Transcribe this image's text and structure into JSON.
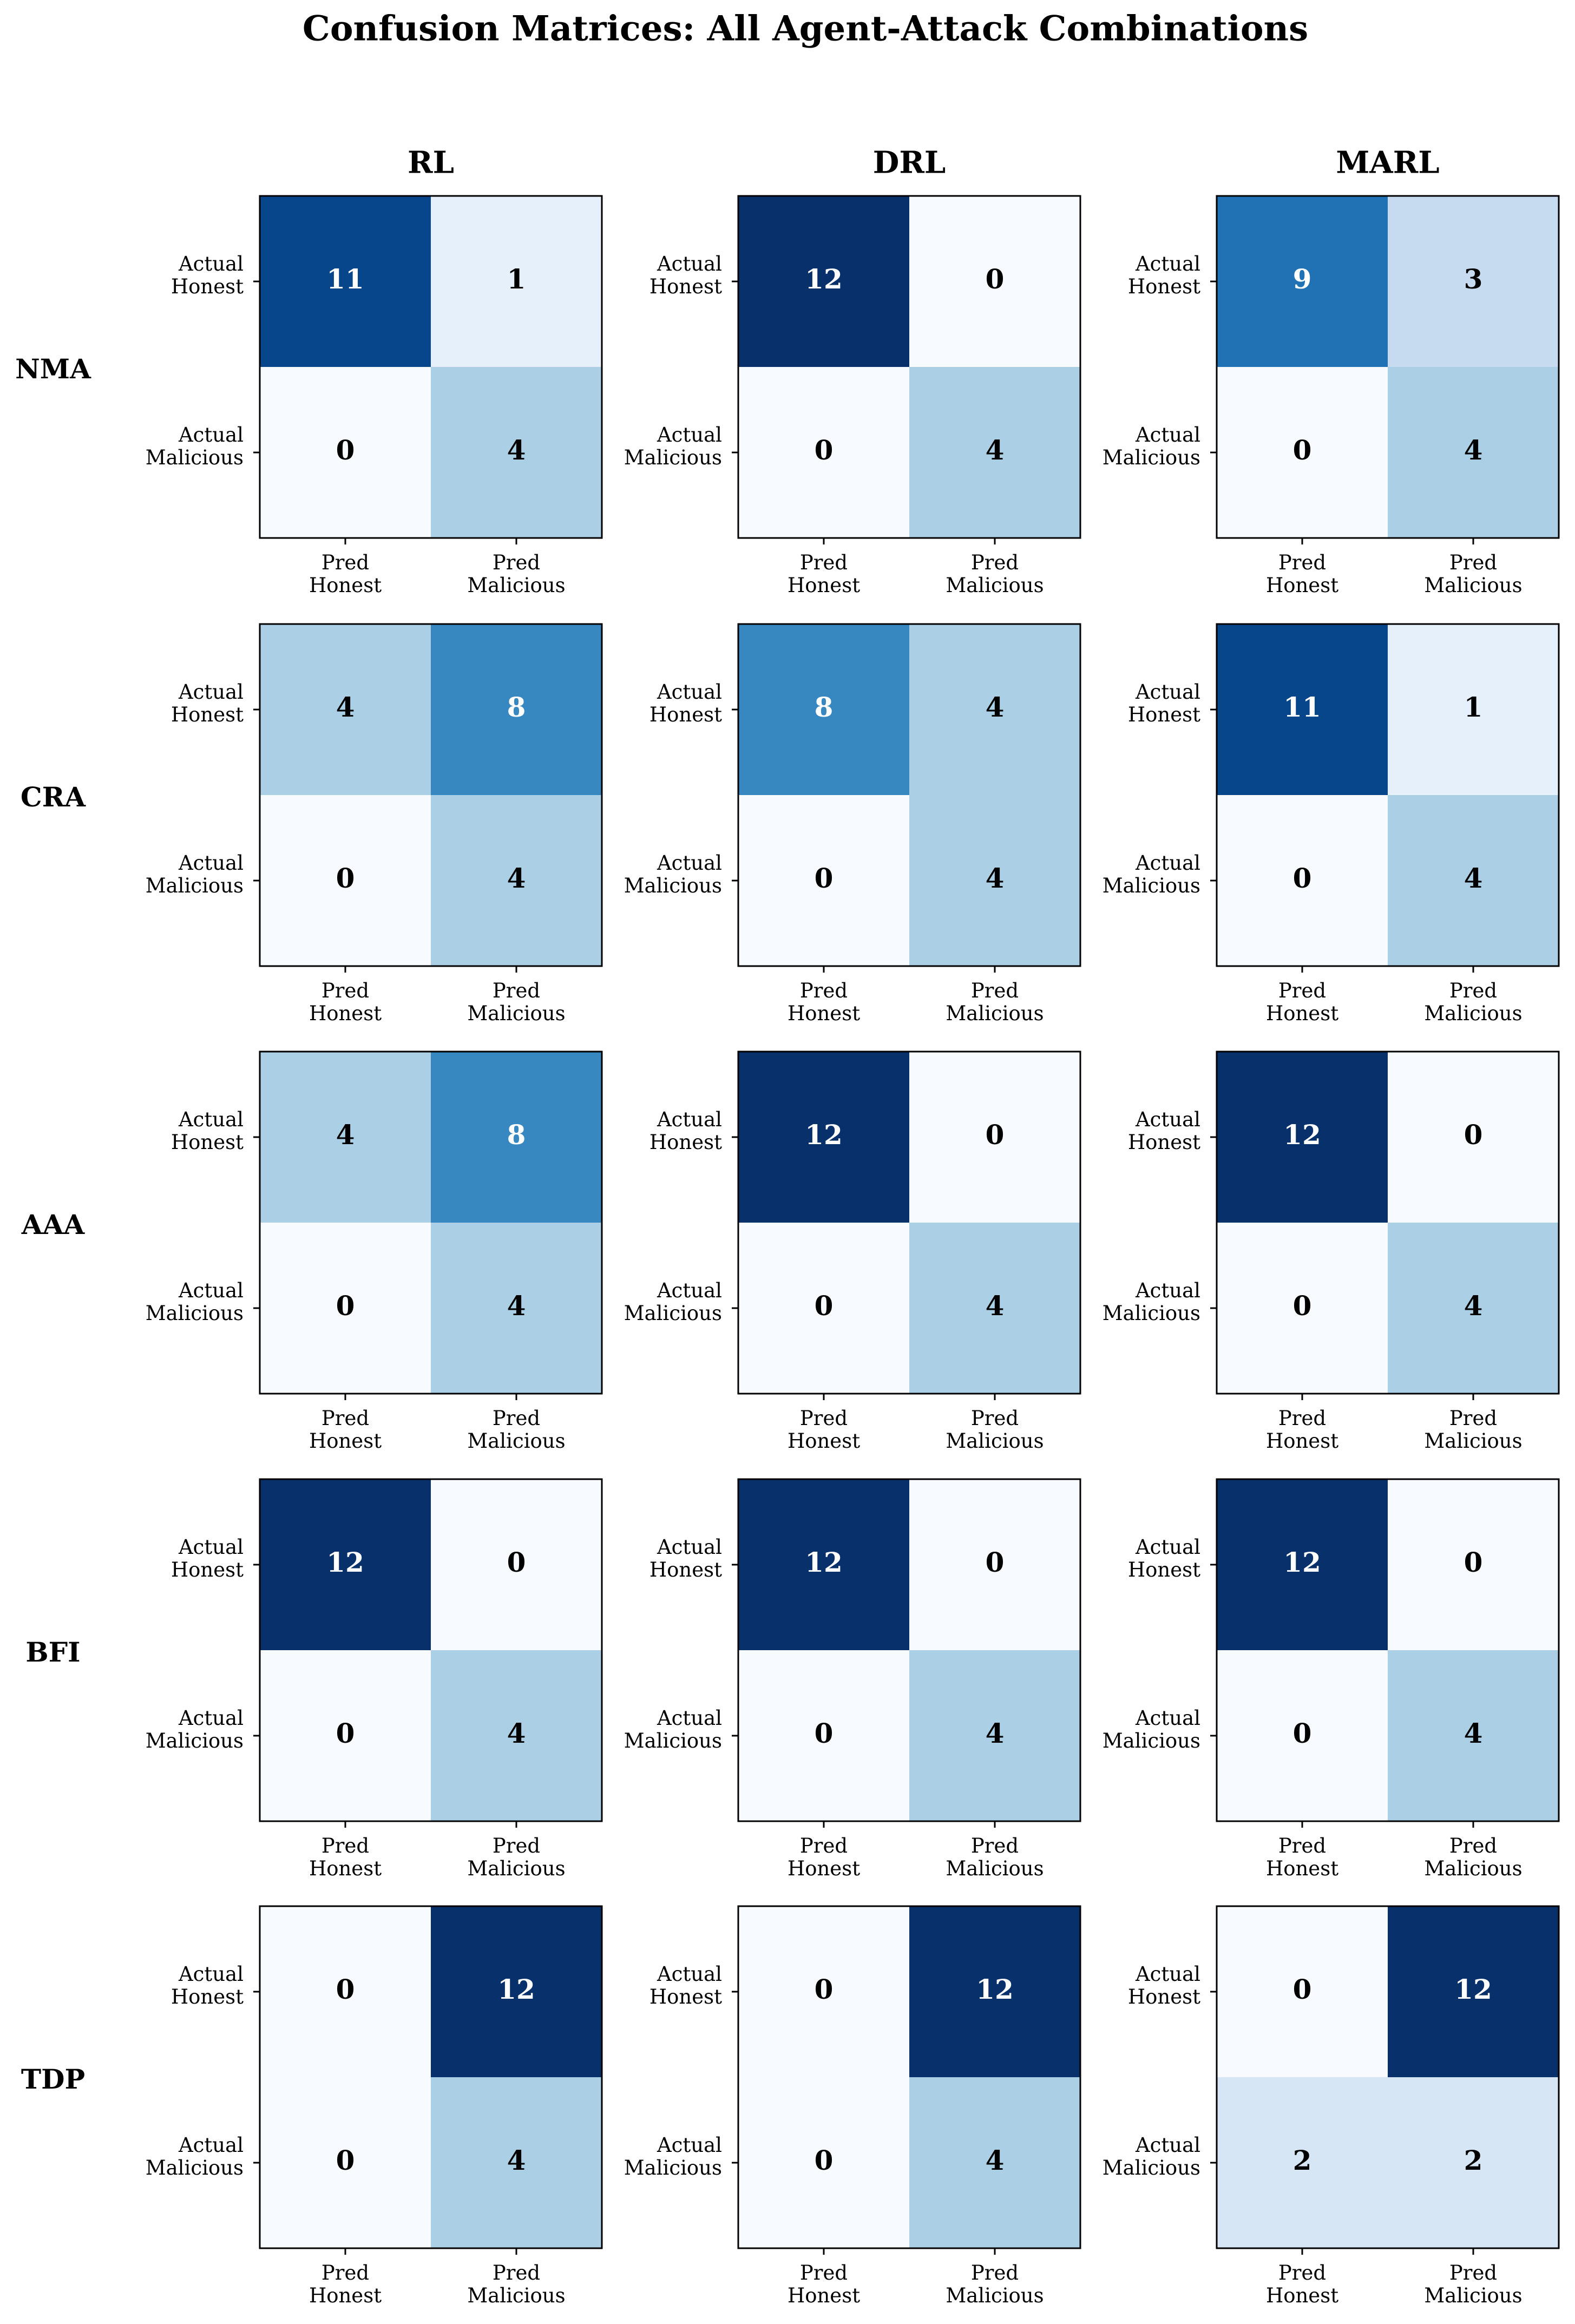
{
  "chart_data": {
    "type": "heatmap",
    "title": "Confusion Matrices: All Agent-Attack Combinations",
    "colormap": "Blues",
    "vmin": 0,
    "vmax": 12,
    "columns": [
      "RL",
      "DRL",
      "MARL"
    ],
    "rows": [
      "NMA",
      "CRA",
      "AAA",
      "BFI",
      "TDP"
    ],
    "y_tick_labels": [
      [
        "Actual",
        "Honest"
      ],
      [
        "Actual",
        "Malicious"
      ]
    ],
    "x_tick_labels": [
      [
        "Pred",
        "Honest"
      ],
      [
        "Pred",
        "Malicious"
      ]
    ],
    "matrices": [
      [
        [
          [
            11,
            1
          ],
          [
            0,
            4
          ]
        ],
        [
          [
            12,
            0
          ],
          [
            0,
            4
          ]
        ],
        [
          [
            9,
            3
          ],
          [
            0,
            4
          ]
        ]
      ],
      [
        [
          [
            4,
            8
          ],
          [
            0,
            4
          ]
        ],
        [
          [
            8,
            4
          ],
          [
            0,
            4
          ]
        ],
        [
          [
            11,
            1
          ],
          [
            0,
            4
          ]
        ]
      ],
      [
        [
          [
            4,
            8
          ],
          [
            0,
            4
          ]
        ],
        [
          [
            12,
            0
          ],
          [
            0,
            4
          ]
        ],
        [
          [
            12,
            0
          ],
          [
            0,
            4
          ]
        ]
      ],
      [
        [
          [
            12,
            0
          ],
          [
            0,
            4
          ]
        ],
        [
          [
            12,
            0
          ],
          [
            0,
            4
          ]
        ],
        [
          [
            12,
            0
          ],
          [
            0,
            4
          ]
        ]
      ],
      [
        [
          [
            0,
            12
          ],
          [
            0,
            4
          ]
        ],
        [
          [
            0,
            12
          ],
          [
            0,
            4
          ]
        ],
        [
          [
            0,
            12
          ],
          [
            2,
            2
          ]
        ]
      ]
    ]
  }
}
